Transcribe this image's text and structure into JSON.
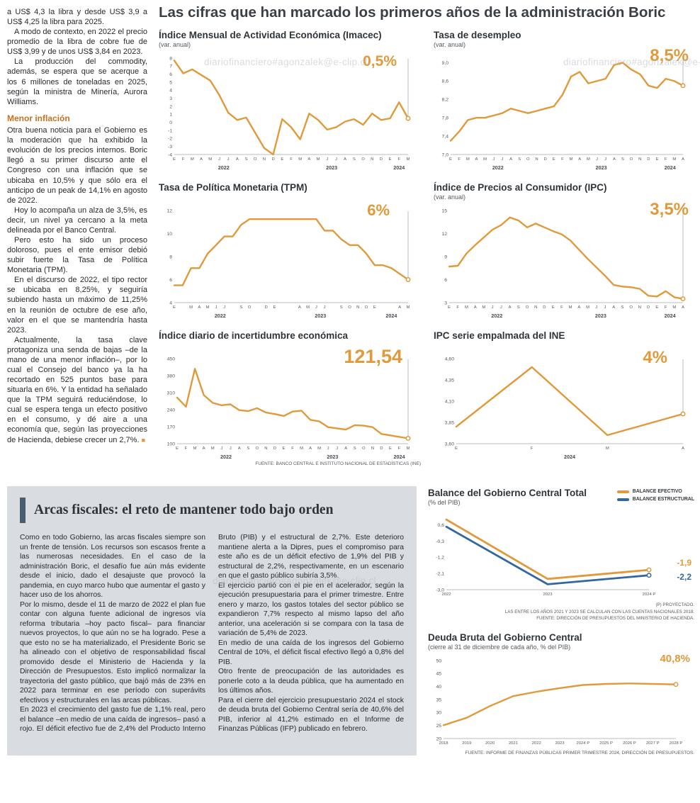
{
  "watermark": "diariofinanciero#agonzalek@e-clip.cl",
  "main_title": "Las cifras que han marcado los primeros años de la administración Boric",
  "colors": {
    "accent_orange": "#E09A3C",
    "line_blue": "#33689E",
    "panel_gray": "#D9DCE0",
    "headline_bar": "#4A5E71",
    "subhead_orange": "#C4731F"
  },
  "left_article": {
    "paragraphs": [
      "a US$ 4,3 la libra y desde US$ 3,9 a US$ 4,25 la libra para 2025.",
      "A modo de contexto, en 2022 el precio promedio de la libra de cobre fue de US$ 3,99 y de unos US$ 3,84 en 2023.",
      "La producción del commodity, además, se espera que se acerque a los 6 millones de toneladas en 2025, según la ministra de Minería, Aurora Williams."
    ],
    "subhead": "Menor inflación",
    "paragraphs2": [
      "Otra buena noticia para el Gobierno es la moderación que ha exhibido la evolución de los precios internos. Boric llegó a su primer discurso ante el Congreso con una inflación que se ubicaba en 10,5% y que sólo era el anticipo de un peak de 14,1% en agosto de 2022.",
      "Hoy lo acompaña un alza de 3,5%, es decir, un nivel ya cercano a la meta delineada por el Banco Central.",
      "Pero esto ha sido un proceso doloroso, pues el ente emisor debió subir fuerte la Tasa de Política Monetaria (TPM).",
      "En el discurso de 2022, el tipo rector se ubicaba en 8,25%, y seguiría subiendo hasta un máximo de 11,25% en la reunión de octubre de ese año, valor en el que se mantendría hasta 2023.",
      "Actualmente, la tasa clave protagoniza una senda de bajas –de la mano de una menor inflación–, por lo cual el Consejo del banco ya la ha recortado en 525 puntos base para situarla en 6%. Y la entidad ha señalado que la TPM seguirá reduciéndose, lo cual se espera tenga un efecto positivo en el consumo, y dé aire a una economía que, según las proyecciones de Hacienda, debiese crecer un 2,7%."
    ],
    "end_mark": "■"
  },
  "fiscal_article": {
    "headline": "Arcas fiscales: el reto de mantener todo bajo orden",
    "paragraphs": [
      "Como en todo Gobierno, las arcas fiscales siempre son un frente de tensión. Los recursos son escasos frente a las numerosas necesidades. En el caso de la administración Boric, el desafío fue aún más evidente desde el inicio, dado el desajuste que provocó la pandemia, en cuyo marco hubo que aumentar el gasto y hacer uso de los ahorros.",
      "Por lo mismo, desde el 11 de marzo de 2022 el plan fue contar con alguna fuente adicional de ingresos vía reforma tributaria –hoy pacto fiscal– para financiar nuevos proyectos, lo que aún no se ha logrado. Pese a que esto no se ha materializado, el Presidente Boric se ha alineado con el objetivo de responsabilidad fiscal promovido desde el Ministerio de Hacienda y la Dirección de Presupuestos. Esto implicó normalizar la trayectoria del gasto público, que bajó más de 23% en 2022 para terminar en ese período con superávits efectivos y estructurales en las arcas públicas.",
      "En 2023 el crecimiento del gasto fue de 1,1% real, pero el balance –en medio de una caída de ingresos– pasó a rojo. El déficit efectivo fue de 2,4% del Producto Interno Bruto (PIB) y el estructural de 2,7%. Este deterioro mantiene alerta a la Dipres, pues el compromiso para este año es de un déficit efectivo de 1,9% del PIB y estructural de 2,2%, respectivamente, en un escenario en que el gasto público subiría 3,5%.",
      "El ejercicio partió con el pie en el acelerador, según la ejecución presupuestaria para el primer trimestre. Entre enero y marzo, los gastos totales del sector público se expandieron 7,7% respecto al mismo lapso del año anterior, una aceleración si se compara con la tasa de variación de 5,4% de 2023.",
      "En medio de una caída de los ingresos del Gobierno Central de 10%, el déficit fiscal efectivo llegó a 0,8% del PIB.",
      "Otro frente de preocupación de las autoridades es ponerle coto a la deuda pública, que ha aumentado en los últimos años.",
      "Para el cierre del ejercicio presupuestario 2024 el stock de deuda bruta del Gobierno Central sería de 40,6% del PIB, inferior al 41,2% estimado en el Informe de Finanzas Públicas (IFP) publicado en febrero."
    ]
  },
  "chart_data": [
    {
      "id": "imacec",
      "type": "line",
      "title": "Índice Mensual de Actividad Económica (Imacec)",
      "subtitle": "(var. anual)",
      "callout": "0,5%",
      "dropline": true,
      "ylim": [
        -4,
        8
      ],
      "yticks": [
        [
          8,
          "8"
        ],
        [
          7,
          "7"
        ],
        [
          6,
          "6"
        ],
        [
          5,
          "5"
        ],
        [
          4,
          "4"
        ],
        [
          3,
          "3"
        ],
        [
          2,
          "2"
        ],
        [
          1,
          "1"
        ],
        [
          0,
          "0"
        ],
        [
          -1,
          "-1"
        ],
        [
          -2,
          "-2"
        ],
        [
          -3,
          "-3"
        ],
        [
          -4,
          "-4"
        ]
      ],
      "x": [
        "E",
        "F",
        "M",
        "A",
        "M",
        "J",
        "J",
        "A",
        "S",
        "O",
        "N",
        "D",
        "E",
        "F",
        "M",
        "A",
        "M",
        "J",
        "J",
        "A",
        "S",
        "O",
        "N",
        "D",
        "E",
        "F",
        "M"
      ],
      "years": [
        {
          "label": "2022",
          "index": 5.5
        },
        {
          "label": "2023",
          "index": 17.5
        },
        {
          "label": "2024",
          "index": 25
        }
      ],
      "series": [
        {
          "name": "Imacec",
          "color": "#E09A3C",
          "values": [
            7.7,
            6.1,
            6.6,
            5.9,
            5.2,
            3.4,
            1.2,
            0.3,
            0.6,
            -1.3,
            -3.2,
            -4.0,
            0.4,
            -0.6,
            -2.1,
            1.1,
            0.3,
            -0.9,
            -0.6,
            0.1,
            0.4,
            -0.3,
            1.1,
            0.3,
            0.5,
            2.5,
            0.5
          ]
        }
      ]
    },
    {
      "id": "desempleo",
      "type": "line",
      "title": "Tasa de desempleo",
      "subtitle": "(var. anual)",
      "callout": "8,5%",
      "dropline": true,
      "ylim": [
        7.0,
        9.1
      ],
      "yticks": [
        [
          9.0,
          "9,0"
        ],
        [
          8.6,
          "8,6"
        ],
        [
          8.2,
          "8,2"
        ],
        [
          7.8,
          "7,8"
        ],
        [
          7.4,
          "7,4"
        ],
        [
          7.0,
          "7,0"
        ]
      ],
      "x": [
        "E",
        "F",
        "M",
        "A",
        "M",
        "J",
        "J",
        "A",
        "S",
        "O",
        "N",
        "D",
        "E",
        "F",
        "M",
        "A",
        "M",
        "J",
        "J",
        "A",
        "S",
        "O",
        "N",
        "D",
        "E",
        "F",
        "M",
        "A"
      ],
      "years": [
        {
          "label": "2022",
          "index": 5.5
        },
        {
          "label": "2023",
          "index": 17.5
        },
        {
          "label": "2024",
          "index": 25.5
        }
      ],
      "series": [
        {
          "name": "Tasa de desempleo",
          "color": "#E09A3C",
          "values": [
            7.3,
            7.5,
            7.75,
            7.8,
            7.8,
            7.85,
            7.9,
            8.0,
            7.95,
            7.9,
            7.95,
            8.0,
            8.05,
            8.3,
            8.7,
            8.8,
            8.55,
            8.6,
            8.65,
            8.95,
            9.0,
            8.85,
            8.75,
            8.5,
            8.45,
            8.65,
            8.6,
            8.5
          ]
        }
      ]
    },
    {
      "id": "tpm",
      "type": "line",
      "title": "Tasa de Política Monetaria (TPM)",
      "callout": "6%",
      "dropline": true,
      "ylim": [
        4,
        12
      ],
      "yticks": [
        [
          12,
          "12"
        ],
        [
          10,
          "10"
        ],
        [
          8,
          "8"
        ],
        [
          6,
          "6"
        ],
        [
          4,
          "4"
        ]
      ],
      "x": [
        "E",
        "",
        "M",
        "A",
        "M",
        "J",
        "J",
        "",
        "S",
        "O",
        "",
        "D",
        "E",
        "",
        "",
        "A",
        "M",
        "J",
        "J",
        "",
        "S",
        "O",
        "N",
        "D",
        "E",
        "",
        "",
        "A",
        "M"
      ],
      "years": [
        {
          "label": "2022",
          "index": 5.5
        },
        {
          "label": "2023",
          "index": 17.5
        },
        {
          "label": "2024",
          "index": 26
        }
      ],
      "series": [
        {
          "name": "TPM",
          "color": "#E09A3C",
          "values": [
            5.5,
            5.5,
            7.0,
            7.0,
            8.25,
            9.0,
            9.75,
            9.75,
            10.75,
            11.25,
            11.25,
            11.25,
            11.25,
            11.25,
            11.25,
            11.25,
            11.25,
            11.25,
            10.25,
            10.25,
            9.5,
            9.0,
            9.0,
            8.25,
            7.25,
            7.25,
            7.0,
            6.5,
            6.0
          ]
        }
      ]
    },
    {
      "id": "ipc",
      "type": "line",
      "title": "Índice de Precios al Consumidor (IPC)",
      "subtitle": "(var. anual)",
      "callout": "3,5%",
      "dropline": true,
      "ylim": [
        3,
        15
      ],
      "yticks": [
        [
          15,
          "15"
        ],
        [
          12,
          "12"
        ],
        [
          9,
          "9"
        ],
        [
          6,
          "6"
        ],
        [
          3,
          "3"
        ]
      ],
      "x": [
        "E",
        "F",
        "M",
        "A",
        "M",
        "J",
        "J",
        "A",
        "S",
        "O",
        "N",
        "D",
        "E",
        "F",
        "M",
        "A",
        "M",
        "J",
        "J",
        "A",
        "S",
        "O",
        "N",
        "D",
        "E",
        "F",
        "M",
        "A"
      ],
      "years": [
        {
          "label": "2022",
          "index": 5.5
        },
        {
          "label": "2023",
          "index": 17.5
        },
        {
          "label": "2024",
          "index": 25.5
        }
      ],
      "series": [
        {
          "name": "IPC",
          "color": "#E09A3C",
          "values": [
            7.7,
            7.8,
            9.4,
            10.5,
            11.5,
            12.5,
            13.1,
            14.1,
            13.7,
            12.8,
            13.3,
            12.8,
            12.3,
            11.9,
            11.1,
            9.9,
            8.7,
            7.6,
            6.5,
            5.3,
            5.1,
            5.0,
            4.8,
            3.9,
            3.8,
            4.5,
            3.7,
            3.5
          ]
        }
      ]
    },
    {
      "id": "incertidumbre",
      "type": "line",
      "title": "Índice diario de incertidumbre económica",
      "callout": "121,54",
      "dropline": true,
      "ylim": [
        100,
        450
      ],
      "yticks": [
        [
          450,
          "450"
        ],
        [
          380,
          "380"
        ],
        [
          310,
          "310"
        ],
        [
          240,
          "240"
        ],
        [
          170,
          "170"
        ],
        [
          100,
          "100"
        ]
      ],
      "x": [
        "E",
        "F",
        "M",
        "A",
        "M",
        "J",
        "J",
        "A",
        "S",
        "O",
        "N",
        "D",
        "E",
        "F",
        "M",
        "A",
        "M",
        "J",
        "J",
        "A",
        "S",
        "O",
        "N",
        "D",
        "E",
        "F",
        "M"
      ],
      "years": [
        {
          "label": "2022",
          "index": 5.5
        },
        {
          "label": "2023",
          "index": 17.5
        },
        {
          "label": "2024",
          "index": 25
        }
      ],
      "series": [
        {
          "name": "Incertidumbre económica",
          "color": "#E09A3C",
          "values": [
            290,
            252,
            408,
            300,
            268,
            258,
            262,
            238,
            234,
            246,
            228,
            222,
            214,
            232,
            236,
            198,
            192,
            168,
            163,
            158,
            176,
            174,
            168,
            140,
            134,
            128,
            122
          ]
        }
      ],
      "source": "FUENTE: BANCO CENTRAL E INSTITUTO NACIONAL DE ESTADÍSTICAS (INE)"
    },
    {
      "id": "ipc_ine",
      "type": "line",
      "title": "IPC serie empalmada del INE",
      "callout": "4%",
      "dropline": true,
      "ylim": [
        3.6,
        4.6
      ],
      "yticks": [
        [
          4.6,
          "4,60"
        ],
        [
          4.35,
          "4,35"
        ],
        [
          4.1,
          "4,10"
        ],
        [
          3.85,
          "3,85"
        ],
        [
          3.6,
          "3,60"
        ]
      ],
      "x": [
        "E",
        "F",
        "M",
        "A"
      ],
      "years": [
        {
          "label": "2024",
          "index": 1.5
        }
      ],
      "series": [
        {
          "name": "IPC serie empalmada",
          "color": "#E09A3C",
          "values": [
            3.8,
            4.5,
            3.7,
            3.95
          ]
        }
      ]
    },
    {
      "id": "balance_gobierno_central",
      "type": "line",
      "title": "Balance del Gobierno Central Total",
      "subtitle": "(% del PIB)",
      "callouts": [
        "-1,9",
        "-2,2"
      ],
      "dropline": false,
      "ylim": [
        -3.0,
        1.1
      ],
      "yticks": [
        [
          0.6,
          "0,6"
        ],
        [
          -0.3,
          "-0,3"
        ],
        [
          -1.2,
          "-1,2"
        ],
        [
          -2.1,
          "-2,1"
        ],
        [
          -3.0,
          "-3,0"
        ]
      ],
      "x": [
        "2022",
        "2023",
        "2024 P"
      ],
      "legend": [
        {
          "label": "BALANCE EFECTIVO",
          "color": "#E09A3C"
        },
        {
          "label": "BALANCE ESTRUCTURAL",
          "color": "#33689E"
        }
      ],
      "series": [
        {
          "name": "Balance efectivo",
          "color": "#E09A3C",
          "values": [
            0.9,
            -2.4,
            -1.9
          ]
        },
        {
          "name": "Balance estructural",
          "color": "#33689E",
          "values": [
            0.5,
            -2.7,
            -2.2
          ]
        }
      ],
      "notes": [
        "(P) PROYECTADO.",
        "LAS ENTRE LOS AÑOS 2021 Y 2023 SE CALCULAN CON LAS CUENTAS NACIONALES 2018.",
        "FUENTE: DIRECCIÓN DE PRESUPUESTOS DEL MINISTERIO DE HACIENDA."
      ]
    },
    {
      "id": "deuda_bruta",
      "type": "line",
      "title": "Deuda Bruta del Gobierno Central",
      "subtitle": "(cierre al 31 de diciembre de cada año, % del PIB)",
      "callout": "40,8%",
      "dropline": false,
      "ylim": [
        20,
        50
      ],
      "yticks": [
        [
          50,
          "50"
        ],
        [
          45,
          "45"
        ],
        [
          40,
          "40"
        ],
        [
          35,
          "35"
        ],
        [
          30,
          "30"
        ],
        [
          25,
          "25"
        ],
        [
          20,
          "20"
        ]
      ],
      "x": [
        "2018",
        "2019",
        "2020",
        "2021",
        "2022",
        "2023",
        "2024 P",
        "2025 P",
        "2026 P",
        "2027 P",
        "2028 P"
      ],
      "series": [
        {
          "name": "Deuda bruta",
          "color": "#E09A3C",
          "values": [
            25.1,
            28.0,
            32.5,
            36.3,
            38.0,
            39.4,
            40.6,
            41.0,
            41.2,
            41.0,
            40.8
          ]
        }
      ],
      "source": "FUENTE: INFORME DE FINANZAS PÚBLICAS PRIMER TRIMESTRE 2024, DIRECCIÓN DE PRESUPUESTOS."
    }
  ]
}
